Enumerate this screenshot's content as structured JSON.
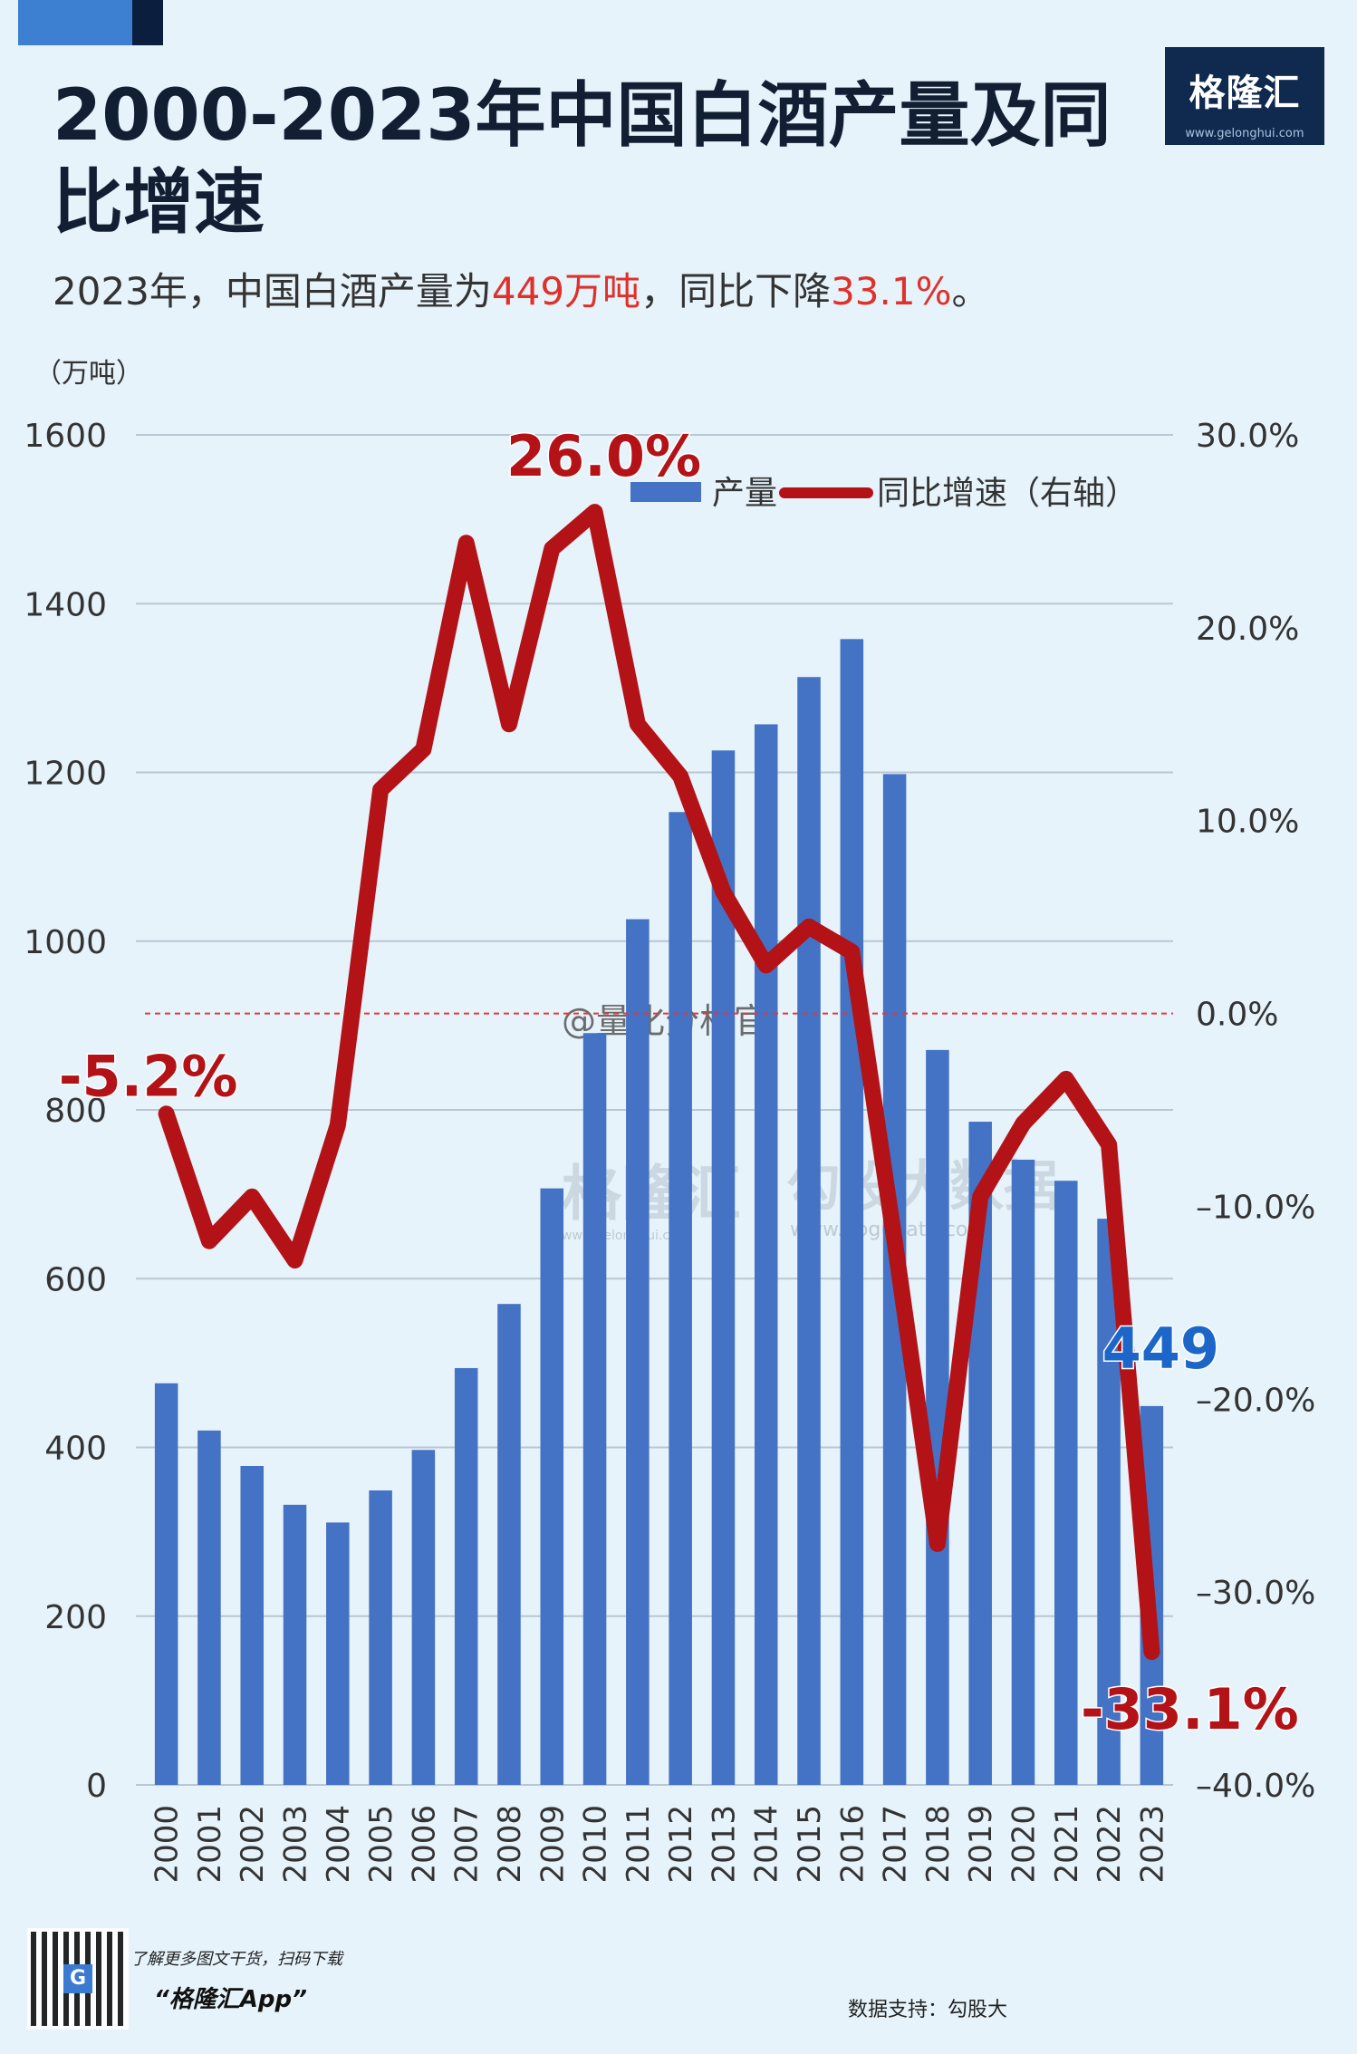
{
  "header": {
    "title": "2000-2023年中国白酒产量及同比增速",
    "subtitle_prefix": "2023年，中国白酒产量为",
    "subtitle_value": "449万吨",
    "subtitle_mid": "，同比下降",
    "subtitle_pct": "33.1%",
    "subtitle_suffix": "。"
  },
  "logo": {
    "name": "格隆汇",
    "url": "www.gelonghui.com"
  },
  "chart_data": {
    "type": "bar",
    "unit_label": "（万吨）",
    "categories": [
      "2000",
      "2001",
      "2002",
      "2003",
      "2004",
      "2005",
      "2006",
      "2007",
      "2008",
      "2009",
      "2010",
      "2011",
      "2012",
      "2013",
      "2014",
      "2015",
      "2016",
      "2017",
      "2018",
      "2019",
      "2020",
      "2021",
      "2022",
      "2023"
    ],
    "series": [
      {
        "name": "产量",
        "type": "bar",
        "axis": "left",
        "color": "#4472c4",
        "values": [
          476,
          420,
          378,
          332,
          311,
          349,
          397,
          494,
          570,
          707,
          891,
          1026,
          1153,
          1226,
          1257,
          1313,
          1358,
          1198,
          871,
          786,
          741,
          716,
          671,
          449
        ]
      },
      {
        "name": "同比增速（右轴）",
        "type": "line",
        "axis": "right",
        "color": "#b31217",
        "values": [
          -5.2,
          -11.8,
          -9.5,
          -12.8,
          -5.8,
          11.6,
          13.7,
          24.4,
          15.0,
          24.1,
          26.0,
          15.0,
          12.3,
          6.3,
          2.5,
          4.5,
          3.2,
          -11.8,
          -27.5,
          -9.5,
          -5.7,
          -3.4,
          -6.8,
          -33.1
        ]
      }
    ],
    "ylim_left": [
      0,
      1600
    ],
    "yticks_left": [
      0,
      200,
      400,
      600,
      800,
      1000,
      1200,
      1400,
      1600
    ],
    "ylim_right": [
      -40,
      30
    ],
    "yticks_right": [
      "30.0%",
      "20.0%",
      "10.0%",
      "0.0%",
      "–10.0%",
      "–20.0%",
      "–30.0%",
      "–40.0%"
    ],
    "legend_position": "top-right",
    "annotations": [
      {
        "text": "-5.2%",
        "series": "line",
        "index": 0,
        "color": "#b31217"
      },
      {
        "text": "26.0%",
        "series": "line",
        "index": 10,
        "color": "#b31217"
      },
      {
        "text": "449",
        "series": "bar",
        "index": 23,
        "color": "#1d66c9"
      },
      {
        "text": "-33.1%",
        "series": "line",
        "index": 23,
        "color": "#b31217"
      }
    ],
    "watermarks": [
      "@量化分析官",
      "格隆汇",
      "www.gelonghui.com",
      "勾股大数据",
      "www.gogudata.com"
    ]
  },
  "footer": {
    "tip": "了解更多图文干货，扫码下载",
    "app": "“格隆汇App”",
    "source": "数据支持：勾股大"
  }
}
